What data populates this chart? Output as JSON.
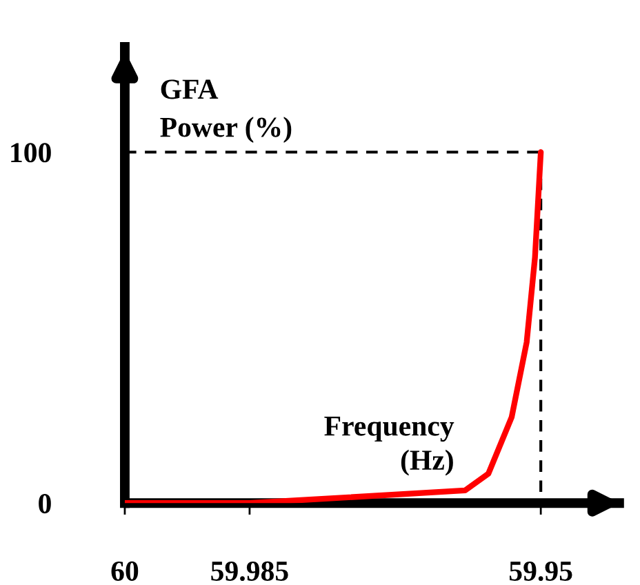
{
  "chart_data": {
    "type": "line",
    "ylabel": "GFA\nPower (%)",
    "xlabel": "Frequency\n(Hz)",
    "xlim": [
      60,
      59.94
    ],
    "xticks": [
      60,
      59.985,
      59.95
    ],
    "ylim": [
      0,
      130
    ],
    "yticks": [
      0,
      100
    ],
    "series": [
      {
        "color": "#ff0000",
        "x": [
          60,
          59.985,
          59.9591,
          59.9563,
          59.9535,
          59.9517,
          59.9507,
          59.95
        ],
        "values": [
          0,
          0,
          3.6,
          8.4,
          24.5,
          45.8,
          70,
          100
        ],
        "line_style": "solid"
      },
      {
        "color": "#000000",
        "x": [
          60,
          59.95,
          59.95
        ],
        "values": [
          100,
          100,
          0
        ],
        "line_style": "dashed"
      }
    ],
    "grid": false,
    "legend": false,
    "marker": "none"
  }
}
